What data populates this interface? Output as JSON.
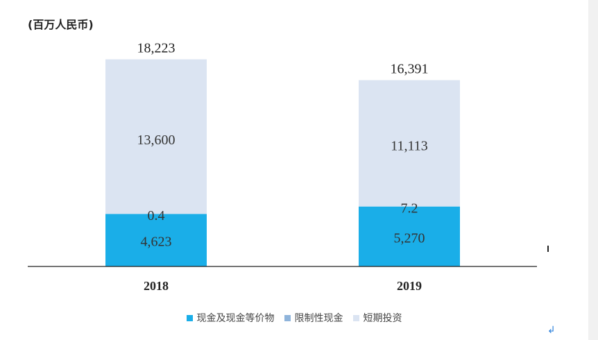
{
  "unit_label": "(百万人民币)",
  "chart_data": {
    "type": "bar",
    "stacked": true,
    "categories": [
      "2018",
      "2019"
    ],
    "series": [
      {
        "name": "现金及现金等价物",
        "values": [
          4623,
          5270
        ],
        "labels": [
          "4,623",
          "5,270"
        ],
        "color": "#1aaee8"
      },
      {
        "name": "限制性现金",
        "values": [
          0.4,
          7.2
        ],
        "labels": [
          "0.4",
          "7.2"
        ],
        "color": "#8fb4db"
      },
      {
        "name": "短期投资",
        "values": [
          13600,
          11113
        ],
        "labels": [
          "13,600",
          "11,113"
        ],
        "color": "#dbe4f2"
      }
    ],
    "totals": [
      18223,
      16391
    ],
    "total_labels": [
      "18,223",
      "16,391"
    ],
    "ylim": [
      0,
      21000
    ],
    "grid": false,
    "legend_position": "bottom"
  },
  "stray_marks": {
    "return_symbol": "↲"
  }
}
